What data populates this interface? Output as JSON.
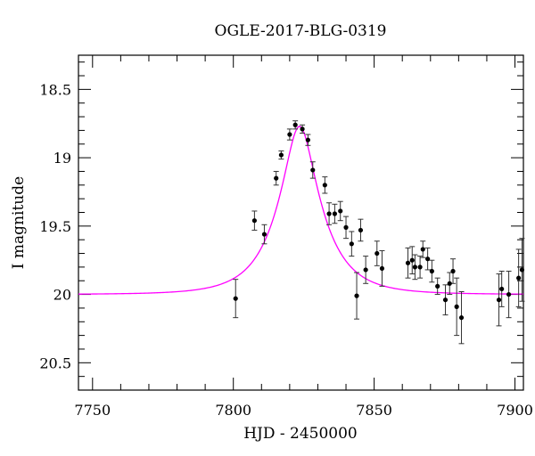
{
  "chart_data": {
    "type": "scatter",
    "title": "OGLE-2017-BLG-0319",
    "xlabel": "HJD - 2450000",
    "ylabel": "I magnitude",
    "xlim": [
      7745,
      7903
    ],
    "ylim": [
      20.7,
      18.25
    ],
    "y_inverted": true,
    "xticks": [
      7750,
      7800,
      7850,
      7900
    ],
    "xtick_labels": [
      "7750",
      "7800",
      "7850",
      "7900"
    ],
    "yticks": [
      18.5,
      19,
      19.5,
      20,
      20.5
    ],
    "ytick_labels": [
      "18.5",
      "19",
      "19.5",
      "20",
      "20.5"
    ],
    "grid": false,
    "colors": {
      "points": "#000000",
      "model": "#ff00ff"
    },
    "model_curve": {
      "baseline": 20.0,
      "peak_mag": 18.77,
      "t0": 7823.5,
      "tE": 15.0
    },
    "series": [
      {
        "points": [
          {
            "x": 7800.8,
            "y": 20.03,
            "err": 0.14
          },
          {
            "x": 7807.5,
            "y": 19.46,
            "err": 0.07
          },
          {
            "x": 7811.0,
            "y": 19.56,
            "err": 0.07
          },
          {
            "x": 7815.2,
            "y": 19.15,
            "err": 0.05
          },
          {
            "x": 7817.0,
            "y": 18.98,
            "err": 0.03
          },
          {
            "x": 7820.0,
            "y": 18.83,
            "err": 0.04
          },
          {
            "x": 7822.0,
            "y": 18.76,
            "err": 0.03
          },
          {
            "x": 7824.5,
            "y": 18.79,
            "err": 0.03
          },
          {
            "x": 7826.5,
            "y": 18.87,
            "err": 0.04
          },
          {
            "x": 7828.2,
            "y": 19.09,
            "err": 0.06
          },
          {
            "x": 7832.5,
            "y": 19.2,
            "err": 0.06
          },
          {
            "x": 7834.0,
            "y": 19.41,
            "err": 0.08
          },
          {
            "x": 7836.0,
            "y": 19.41,
            "err": 0.07
          },
          {
            "x": 7838.0,
            "y": 19.39,
            "err": 0.07
          },
          {
            "x": 7840.0,
            "y": 19.51,
            "err": 0.08
          },
          {
            "x": 7842.0,
            "y": 19.63,
            "err": 0.09
          },
          {
            "x": 7843.8,
            "y": 20.01,
            "err": 0.17
          },
          {
            "x": 7845.2,
            "y": 19.53,
            "err": 0.08
          },
          {
            "x": 7847.0,
            "y": 19.82,
            "err": 0.1
          },
          {
            "x": 7851.0,
            "y": 19.7,
            "err": 0.09
          },
          {
            "x": 7852.8,
            "y": 19.81,
            "err": 0.13
          },
          {
            "x": 7862.0,
            "y": 19.77,
            "err": 0.11
          },
          {
            "x": 7863.5,
            "y": 19.75,
            "err": 0.1
          },
          {
            "x": 7864.5,
            "y": 19.8,
            "err": 0.09
          },
          {
            "x": 7866.3,
            "y": 19.8,
            "err": 0.08
          },
          {
            "x": 7867.3,
            "y": 19.67,
            "err": 0.06
          },
          {
            "x": 7869.0,
            "y": 19.74,
            "err": 0.08
          },
          {
            "x": 7870.5,
            "y": 19.83,
            "err": 0.08
          },
          {
            "x": 7872.5,
            "y": 19.94,
            "err": 0.06
          },
          {
            "x": 7875.3,
            "y": 20.04,
            "err": 0.11
          },
          {
            "x": 7876.8,
            "y": 19.92,
            "err": 0.08
          },
          {
            "x": 7878.0,
            "y": 19.83,
            "err": 0.09
          },
          {
            "x": 7879.3,
            "y": 20.09,
            "err": 0.21
          },
          {
            "x": 7881.0,
            "y": 20.17,
            "err": 0.19
          },
          {
            "x": 7894.3,
            "y": 20.04,
            "err": 0.19
          },
          {
            "x": 7895.3,
            "y": 19.96,
            "err": 0.13
          },
          {
            "x": 7897.8,
            "y": 20.0,
            "err": 0.17
          },
          {
            "x": 7901.3,
            "y": 19.88,
            "err": 0.21
          },
          {
            "x": 7902.5,
            "y": 19.82,
            "err": 0.23
          }
        ]
      }
    ]
  }
}
